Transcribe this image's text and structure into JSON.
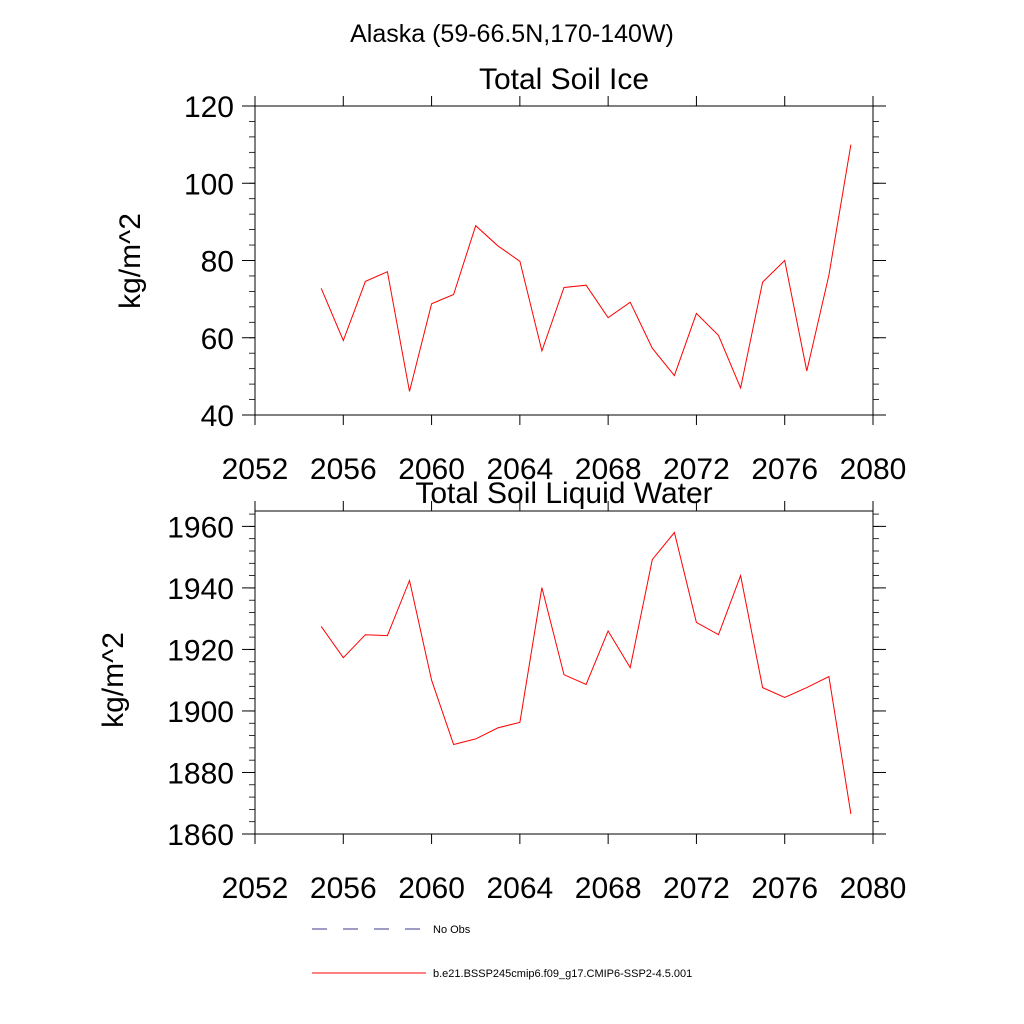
{
  "figure": {
    "suptitle": "Alaska (59-66.5N,170-140W)"
  },
  "chart_data": [
    {
      "type": "line",
      "title": "Total Soil Ice",
      "xlabel": "",
      "ylabel": "kg/m^2",
      "xlim": [
        2052,
        2080
      ],
      "ylim": [
        40,
        120
      ],
      "xticks": [
        2052,
        2056,
        2060,
        2064,
        2068,
        2072,
        2076,
        2080
      ],
      "yticks": [
        40,
        60,
        80,
        100,
        120
      ],
      "grid": false,
      "series": [
        {
          "name": "b.e21.BSSP245cmip6.f09_g17.CMIP6-SSP2-4.5.001",
          "color": "#ff0000",
          "x": [
            2055,
            2056,
            2057,
            2058,
            2059,
            2060,
            2061,
            2062,
            2063,
            2064,
            2065,
            2066,
            2067,
            2068,
            2069,
            2070,
            2071,
            2072,
            2073,
            2074,
            2075,
            2076,
            2077,
            2078,
            2079
          ],
          "y": [
            72.8,
            59.3,
            74.6,
            77.1,
            46.1,
            68.8,
            71.2,
            89.0,
            83.8,
            79.8,
            56.6,
            73.0,
            73.6,
            65.2,
            69.2,
            57.3,
            50.2,
            66.3,
            60.6,
            47.0,
            74.4,
            80.0,
            51.4,
            76.2,
            110.0
          ]
        }
      ]
    },
    {
      "type": "line",
      "title": "Total Soil Liquid Water",
      "xlabel": "",
      "ylabel": "kg/m^2",
      "xlim": [
        2052,
        2080
      ],
      "ylim": [
        1860,
        1965
      ],
      "xticks": [
        2052,
        2056,
        2060,
        2064,
        2068,
        2072,
        2076,
        2080
      ],
      "yticks": [
        1860,
        1880,
        1900,
        1920,
        1940,
        1960
      ],
      "grid": false,
      "series": [
        {
          "name": "b.e21.BSSP245cmip6.f09_g17.CMIP6-SSP2-4.5.001",
          "color": "#ff0000",
          "x": [
            2055,
            2056,
            2057,
            2058,
            2059,
            2060,
            2061,
            2062,
            2063,
            2064,
            2065,
            2066,
            2067,
            2068,
            2069,
            2070,
            2071,
            2072,
            2073,
            2074,
            2075,
            2076,
            2077,
            2078,
            2079
          ],
          "y": [
            1927.5,
            1917.3,
            1924.8,
            1924.5,
            1942.4,
            1910.0,
            1889.1,
            1890.9,
            1894.5,
            1896.3,
            1940.1,
            1911.8,
            1908.6,
            1926.0,
            1914.1,
            1949.2,
            1958.0,
            1928.8,
            1924.8,
            1944.0,
            1907.6,
            1904.4,
            1907.6,
            1911.2,
            1866.5
          ]
        }
      ]
    }
  ],
  "legend": {
    "placement": "bottom",
    "entries": [
      {
        "label": "No Obs",
        "color": "#3a3a8a",
        "style": "dashed"
      },
      {
        "label": "b.e21.BSSP245cmip6.f09_g17.CMIP6-SSP2-4.5.001",
        "color": "#ff0000",
        "style": "solid"
      }
    ]
  }
}
